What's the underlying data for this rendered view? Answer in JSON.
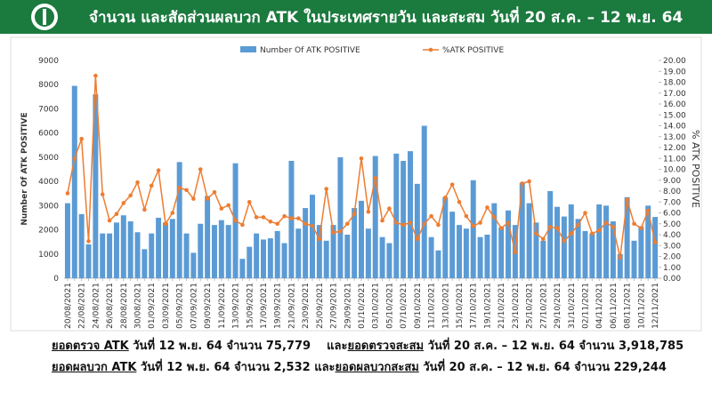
{
  "chart_data": {
    "type": "bar_line",
    "title": "จำนวน และสัดส่วนผลบวก ATK ในประเทศรายวัน และสะสม วันที่ 20 ส.ค. – 12 พ.ย. 64",
    "ylabel": "Number Of ATK POSITIVE",
    "y2label": "% ATK POSITIVE",
    "legend": "top",
    "categories": [
      "20/08/2021",
      null,
      "22/08/2021",
      null,
      "24/08/2021",
      null,
      "26/08/2021",
      null,
      "28/08/2021",
      null,
      "30/08/2021",
      null,
      "01/09/2021",
      null,
      "03/09/2021",
      null,
      "05/09/2021",
      null,
      "07/09/2021",
      null,
      "09/09/2021",
      null,
      "11/09/2021",
      null,
      "13/09/2021",
      null,
      "15/09/2021",
      null,
      "17/09/2021",
      null,
      "19/09/2021",
      null,
      "21/09/2021",
      null,
      "23/09/2021",
      null,
      "25/09/2021",
      null,
      "27/09/2021",
      null,
      "29/09/2021",
      null,
      "01/10/2021",
      null,
      "03/10/2021",
      null,
      "05/10/2021",
      null,
      "07/10/2021",
      null,
      "09/10/2021",
      null,
      "11/10/2021",
      null,
      "13/10/2021",
      null,
      "15/10/2021",
      null,
      "17/10/2021",
      null,
      "19/10/2021",
      null,
      "21/10/2021",
      null,
      "23/10/2021",
      null,
      "25/10/2021",
      null,
      "27/10/2021",
      null,
      "29/10/2021",
      null,
      "31/10/2021",
      null,
      "02/11/2021",
      null,
      "04/11/2021",
      null,
      "06/11/2021",
      null,
      "08/11/2021",
      null,
      "10/11/2021",
      null,
      "12/11/2021"
    ],
    "series": [
      {
        "name": "Number Of ATK POSITIVE",
        "type": "bar",
        "color": "#5b9bd5",
        "values": [
          3100,
          7950,
          2650,
          1400,
          7600,
          1850,
          1850,
          2300,
          2600,
          2350,
          1900,
          1200,
          1850,
          2500,
          2300,
          2450,
          4800,
          1850,
          1050,
          2250,
          3400,
          2200,
          2400,
          2200,
          4750,
          800,
          1300,
          1850,
          1600,
          1650,
          1950,
          1450,
          4850,
          2050,
          2900,
          3450,
          2200,
          1550,
          2200,
          5000,
          1800,
          2900,
          3200,
          2050,
          5050,
          1700,
          1450,
          5150,
          4850,
          5250,
          3900,
          6300,
          1700,
          1150,
          3350,
          2750,
          2200,
          2050,
          4050,
          1700,
          1800,
          3100,
          2100,
          2800,
          2200,
          3950,
          3100,
          2300,
          1550,
          3600,
          2950,
          2550,
          3050,
          2450,
          1950,
          1850,
          3050,
          3000,
          2350,
          1000,
          3350,
          1550,
          2150,
          3000,
          2532
        ]
      },
      {
        "name": "%ATK POSITIVE",
        "type": "line",
        "axis": "y2",
        "color": "#ed7d31",
        "values": [
          7.8,
          11.0,
          12.8,
          3.4,
          18.6,
          7.7,
          5.3,
          5.9,
          6.9,
          7.6,
          8.8,
          6.3,
          8.5,
          9.9,
          5.0,
          6.0,
          8.3,
          8.1,
          7.3,
          10.0,
          7.3,
          7.9,
          6.4,
          6.7,
          5.3,
          4.9,
          7.0,
          5.6,
          5.6,
          5.2,
          5.0,
          5.7,
          5.5,
          5.5,
          5.0,
          4.8,
          3.6,
          8.2,
          4.2,
          4.3,
          5.0,
          5.9,
          11.0,
          6.1,
          9.2,
          5.3,
          6.4,
          5.1,
          4.9,
          5.1,
          3.6,
          5.0,
          5.7,
          4.9,
          7.4,
          8.6,
          7.0,
          5.7,
          4.8,
          5.1,
          6.5,
          5.6,
          4.6,
          5.1,
          2.4,
          8.7,
          8.9,
          4.1,
          3.6,
          4.7,
          4.6,
          3.4,
          4.1,
          4.9,
          6.0,
          4.1,
          4.4,
          5.1,
          4.7,
          1.9,
          7.2,
          5.0,
          4.6,
          6.2,
          3.3
        ]
      }
    ],
    "ylim": [
      0,
      9000
    ],
    "yticks": [
      0,
      1000,
      2000,
      3000,
      4000,
      5000,
      6000,
      7000,
      8000,
      9000
    ],
    "y2lim": [
      0,
      20
    ],
    "y2ticks": [
      {
        "value": 0,
        "label": "0.00"
      },
      {
        "value": 1,
        "label": "1.00"
      },
      {
        "value": 2,
        "label": "2.00"
      },
      {
        "value": 3,
        "label": "3.00"
      },
      {
        "value": 4,
        "label": "4.00"
      },
      {
        "value": 5,
        "label": "5.00"
      },
      {
        "value": 6,
        "label": "6.00"
      },
      {
        "value": 7,
        "label": "7.00"
      },
      {
        "value": 8,
        "label": "8.00"
      },
      {
        "value": 9,
        "label": "9.00"
      },
      {
        "value": 10,
        "label": "10.00"
      },
      {
        "value": 11,
        "label": "11.00"
      },
      {
        "value": 12,
        "label": "12.00"
      },
      {
        "value": 13,
        "label": "13.00"
      },
      {
        "value": 14,
        "label": "14.00"
      },
      {
        "value": 15,
        "label": "15.00"
      },
      {
        "value": 16,
        "label": "16.00"
      },
      {
        "value": 17,
        "label": "17.00"
      },
      {
        "value": 18,
        "label": "18.00"
      },
      {
        "value": 19,
        "label": "19.00"
      },
      {
        "value": 20,
        "label": "20.00"
      }
    ]
  },
  "footer": [
    [
      {
        "text": "ยอดตรวจ ATK",
        "underline": true
      },
      {
        "text": " วันที่ 12 พ.ย. 64 จำนวน 75,779    และ",
        "underline": false
      },
      {
        "text": "ยอดตรวจสะสม",
        "underline": true
      },
      {
        "text": " วันที่ 20 ส.ค. – 12 พ.ย. 64 จำนวน 3,918,785",
        "underline": false
      }
    ],
    [
      {
        "text": "ยอดผลบวก ATK",
        "underline": true
      },
      {
        "text": " วันที่ 12 พ.ย. 64 จำนวน 2,532 และ",
        "underline": false
      },
      {
        "text": "ยอดผลบวกสะสม",
        "underline": true
      },
      {
        "text": " วันที่ 20 ส.ค. – 12 พ.ย. 64 จำนวน 229,244",
        "underline": false
      }
    ]
  ]
}
